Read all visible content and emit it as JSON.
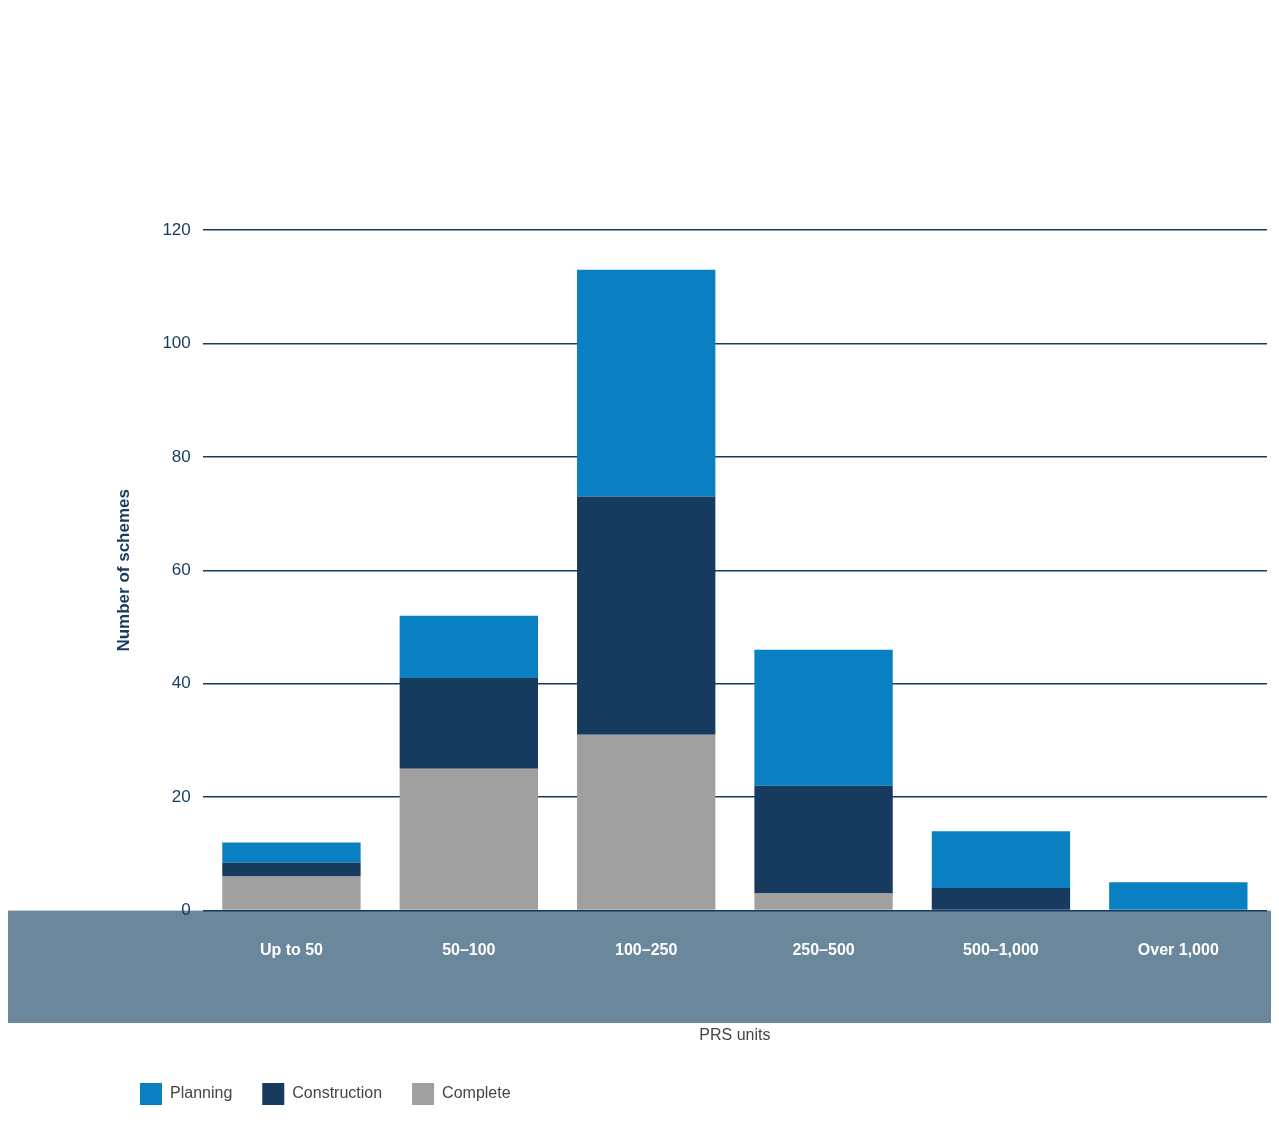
{
  "chart_data": {
    "type": "bar",
    "categories": [
      "Up to 50",
      "50–100",
      "100–250",
      "250–500",
      "500–1,000",
      "Over 1,000"
    ],
    "series": [
      {
        "name": "Planning",
        "color": "#0a80c3",
        "values": [
          3.5,
          11,
          40,
          24,
          10,
          5
        ]
      },
      {
        "name": "Construction",
        "color": "#173b5f",
        "values": [
          2.5,
          16,
          42,
          19,
          4,
          0
        ]
      },
      {
        "name": "Complete",
        "color": "#a0a0a0",
        "values": [
          6,
          25,
          31,
          3,
          0,
          0
        ]
      }
    ],
    "x_label": "PRS units",
    "y_label": "Number of schemes",
    "ylim": [
      0,
      120
    ],
    "yticks": [
      0,
      20,
      40,
      60,
      80,
      100,
      120
    ],
    "grid": true,
    "stacked": true,
    "legend": "bottom"
  }
}
